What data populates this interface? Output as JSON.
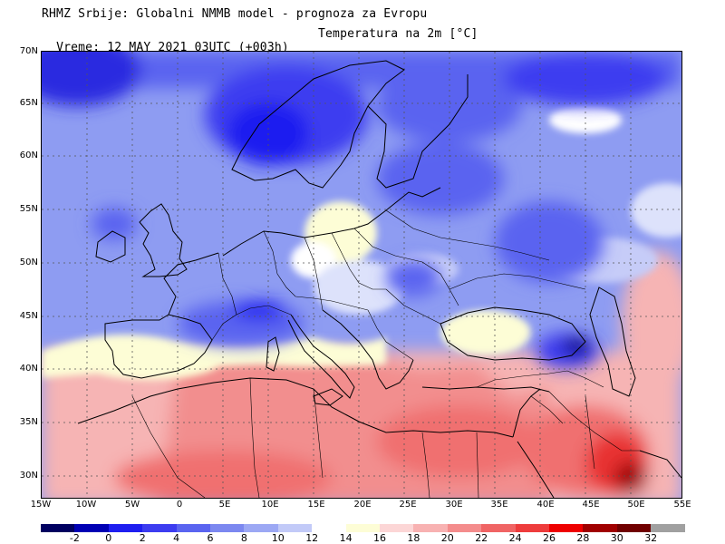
{
  "header": {
    "title": "RHMZ Srbije: Globalni NMMB model - prognoza za Evropu",
    "run_time": "Vreme: 12 MAY 2021 03UTC (+003h)",
    "quantity": "Temperatura na 2m [°C]"
  },
  "map": {
    "lat_labels": [
      "70N",
      "65N",
      "60N",
      "55N",
      "50N",
      "45N",
      "40N",
      "35N",
      "30N"
    ],
    "lon_labels": [
      "15W",
      "10W",
      "5W",
      "0",
      "5E",
      "10E",
      "15E",
      "20E",
      "25E",
      "30E",
      "35E",
      "40E",
      "45E",
      "50E",
      "55E"
    ]
  },
  "colorbar": {
    "labels": [
      "-2",
      "0",
      "2",
      "4",
      "6",
      "8",
      "10",
      "12",
      "14",
      "16",
      "18",
      "20",
      "22",
      "24",
      "26",
      "28",
      "30",
      "32"
    ],
    "colors": [
      "#000060",
      "#0000b4",
      "#1e1ef0",
      "#3c3cf0",
      "#5a64f0",
      "#7c88f0",
      "#9ca8f4",
      "#c2caf8",
      "#ffffff",
      "#fdfdd6",
      "#fcd6d6",
      "#f8b2b2",
      "#f48c8c",
      "#f06464",
      "#ee3c3c",
      "#ee0000",
      "#a00000",
      "#700000",
      "#a0a0a0"
    ]
  }
}
